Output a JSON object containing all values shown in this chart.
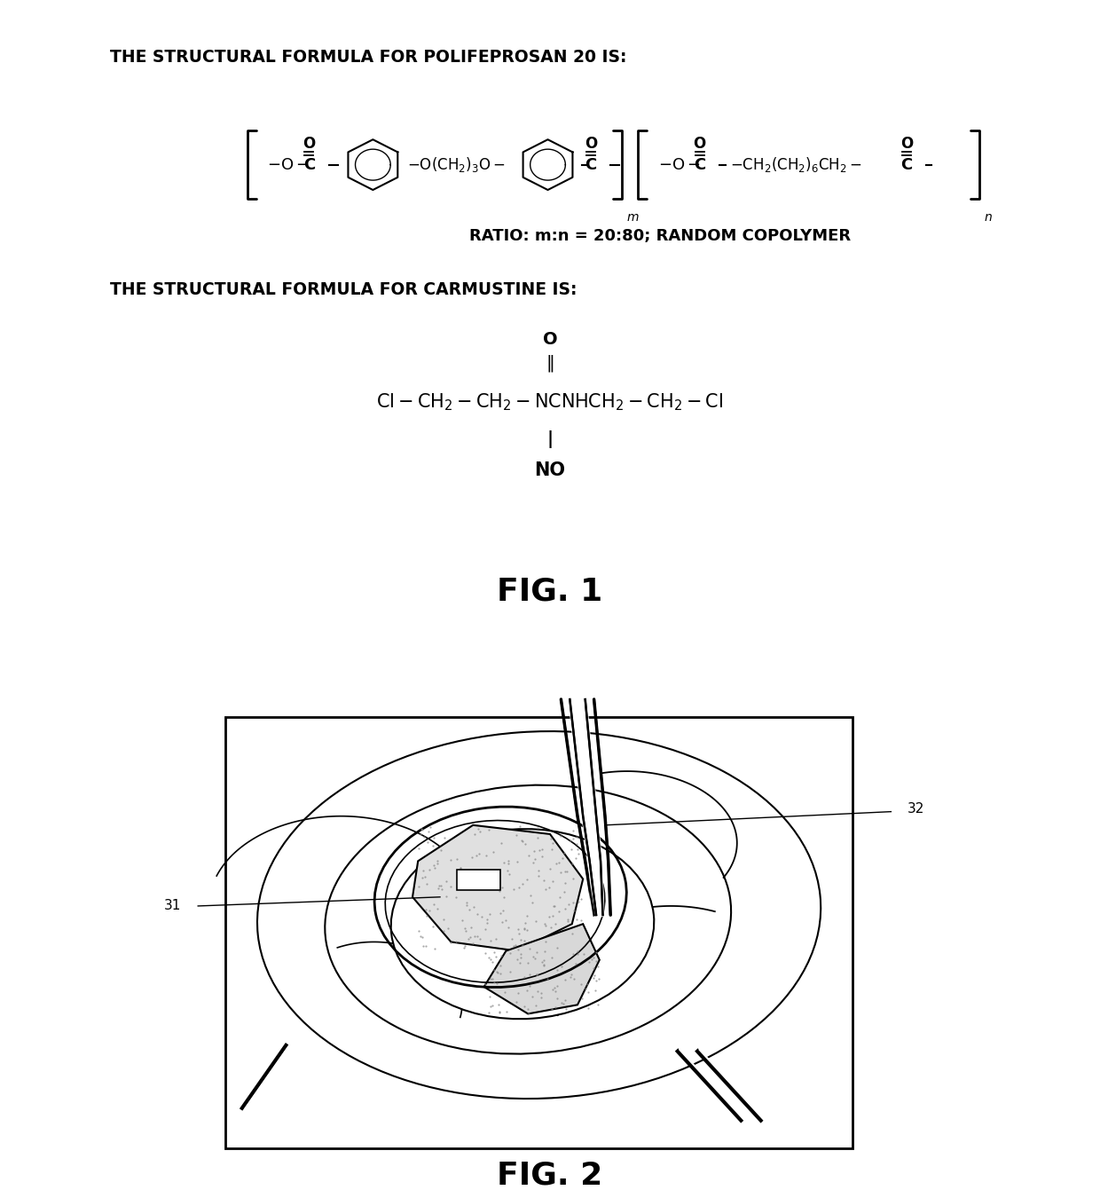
{
  "background_color": "#ffffff",
  "fig1_label": "FIG. 1",
  "fig2_label": "FIG. 2",
  "polifeprosan_header": "THE STRUCTURAL FORMULA FOR POLIFEPROSAN 20 IS:",
  "carmustine_header": "THE STRUCTURAL FORMULA FOR CARMUSTINE IS:",
  "ratio_text": "RATIO: m:n = 20:80; RANDOM COPOLYMER",
  "label_31": "31",
  "label_32": "32",
  "header_fontsize": 13.5,
  "fig_label_fontsize": 26,
  "formula_fontsize": 12,
  "text_color": "#000000",
  "line_color": "#000000"
}
